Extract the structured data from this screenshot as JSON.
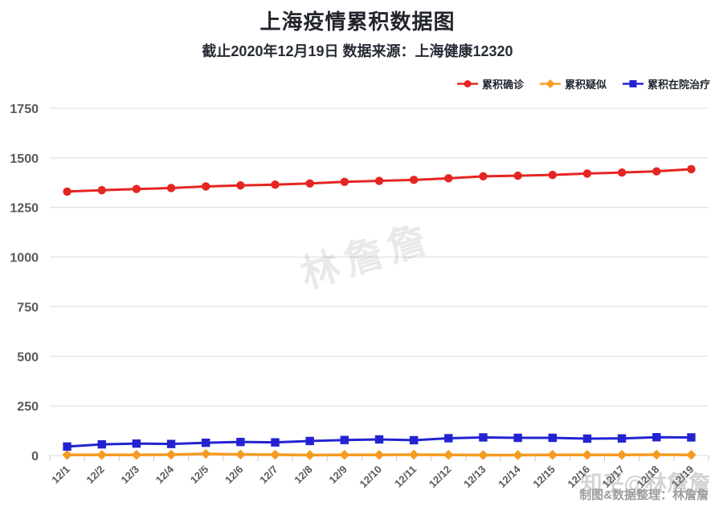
{
  "chart_data": {
    "type": "line",
    "title": "上海疫情累积数据图",
    "subtitle": "截止2020年12月19日 数据来源：上海健康12320",
    "categories": [
      "12/1",
      "12/2",
      "12/3",
      "12/4",
      "12/5",
      "12/6",
      "12/7",
      "12/8",
      "12/9",
      "12/10",
      "12/11",
      "12/12",
      "12/13",
      "12/14",
      "12/15",
      "12/16",
      "12/17",
      "12/18",
      "12/19"
    ],
    "series": [
      {
        "name": "累积确诊",
        "color": "#e52521",
        "marker": "circle",
        "line_width": 3,
        "values": [
          1330,
          1337,
          1343,
          1348,
          1356,
          1361,
          1365,
          1371,
          1379,
          1384,
          1389,
          1397,
          1407,
          1410,
          1414,
          1421,
          1426,
          1432,
          1443
        ]
      },
      {
        "name": "累积疑似",
        "color": "#f59b22",
        "marker": "diamond",
        "line_width": 3.5,
        "values": [
          3,
          3,
          3,
          4,
          8,
          5,
          4,
          2,
          3,
          3,
          4,
          3,
          2,
          2,
          3,
          3,
          3,
          4,
          3
        ]
      },
      {
        "name": "累积在院治疗",
        "color": "#2323d2",
        "marker": "square",
        "line_width": 3,
        "values": [
          45,
          56,
          60,
          58,
          64,
          68,
          66,
          73,
          78,
          81,
          77,
          87,
          91,
          89,
          89,
          85,
          86,
          92,
          91
        ]
      }
    ],
    "ylim": [
      0,
      1750
    ],
    "yticks": [
      0,
      250,
      500,
      750,
      1000,
      1250,
      1500,
      1750
    ],
    "grid": "horizontal",
    "legend_position": "top-right",
    "grid_color": "#dcdcdc",
    "tick_color": "#c9c9c9"
  },
  "watermarks": {
    "center": "林詹詹",
    "social": "知乎@林詹詹",
    "credit": "制图&数据整理：林詹詹"
  }
}
